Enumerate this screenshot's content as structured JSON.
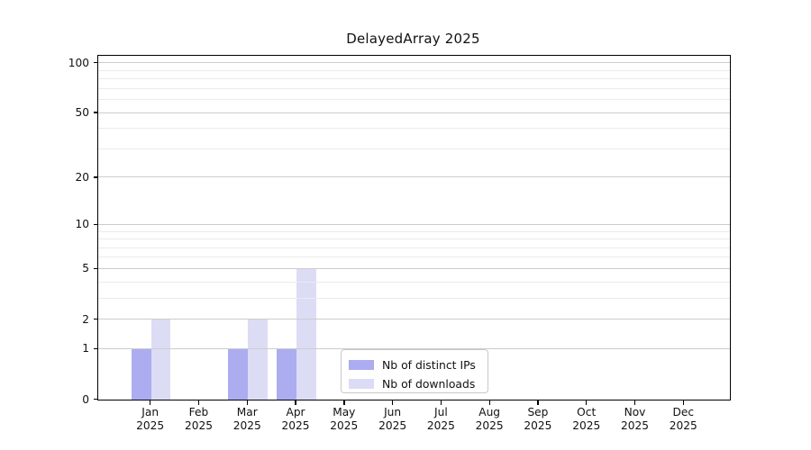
{
  "title": "DelayedArray 2025",
  "chart_data": {
    "type": "bar",
    "title": "DelayedArray 2025",
    "categories": [
      {
        "month": "Jan",
        "year": "2025"
      },
      {
        "month": "Feb",
        "year": "2025"
      },
      {
        "month": "Mar",
        "year": "2025"
      },
      {
        "month": "Apr",
        "year": "2025"
      },
      {
        "month": "May",
        "year": "2025"
      },
      {
        "month": "Jun",
        "year": "2025"
      },
      {
        "month": "Jul",
        "year": "2025"
      },
      {
        "month": "Aug",
        "year": "2025"
      },
      {
        "month": "Sep",
        "year": "2025"
      },
      {
        "month": "Oct",
        "year": "2025"
      },
      {
        "month": "Nov",
        "year": "2025"
      },
      {
        "month": "Dec",
        "year": "2025"
      }
    ],
    "series": [
      {
        "name": "Nb of distinct IPs",
        "color": "#acacf0",
        "values": [
          1,
          0,
          1,
          1,
          0,
          0,
          0,
          0,
          0,
          0,
          0,
          0
        ]
      },
      {
        "name": "Nb of downloads",
        "color": "#dcdcf5",
        "values": [
          2,
          0,
          2,
          5,
          0,
          0,
          0,
          0,
          0,
          0,
          0,
          0
        ]
      }
    ],
    "y_axis": {
      "scale": "log1p",
      "ticks": [
        0,
        1,
        2,
        5,
        10,
        20,
        50,
        100
      ],
      "minor_ticks": [
        3,
        4,
        6,
        7,
        8,
        9,
        30,
        40,
        60,
        70,
        80,
        90
      ],
      "range": [
        0,
        103
      ]
    },
    "grid": {
      "orientation": "horizontal",
      "major_color": "#cccccc",
      "minor_color": "#ebebeb",
      "drawn_over_bars": true
    },
    "axis_color": "#000000",
    "background_color": "#ffffff",
    "legend_position": "inside-bottom-center"
  },
  "legend": {
    "items": [
      {
        "label": "Nb of distinct IPs",
        "color": "#acacf0"
      },
      {
        "label": "Nb of downloads",
        "color": "#dcdcf5"
      }
    ]
  }
}
